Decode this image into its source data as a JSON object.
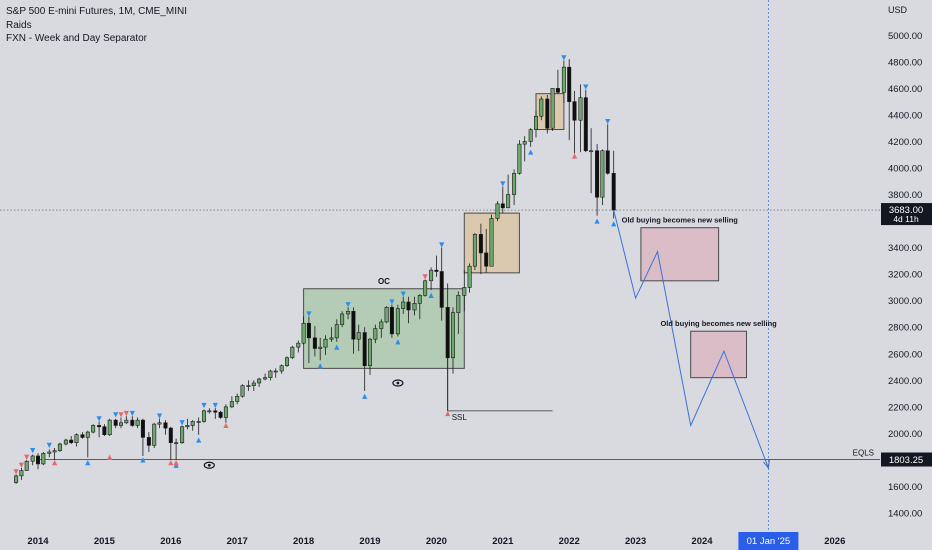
{
  "legend": {
    "title": "S&P 500 E-mini Futures, 1M, CME_MINI",
    "indicator1": "Raids",
    "indicator2": "FXN - Week and Day Separator"
  },
  "colors": {
    "background": "#d8dae0",
    "up_candle": "#6da86d",
    "down_candle": "#0f0f0f",
    "box_green": "#a8c7a8",
    "box_orange": "#dcc39f",
    "box_pink": "#dcb3c0",
    "projection": "#3a72d6",
    "marker_blue": "#2a8ef0",
    "marker_red": "#e26a6a",
    "price_label_bg": "#131722",
    "date_label_bg": "#2a5ee8"
  },
  "chart_data": {
    "type": "candlestick",
    "title": "S&P 500 E-mini Futures, 1M, CME_MINI",
    "currency": "USD",
    "ylim": [
      1300,
      5200
    ],
    "y_ticks": [
      1400,
      1600,
      1800,
      2000,
      2200,
      2400,
      2600,
      2800,
      3000,
      3200,
      3400,
      3600,
      3800,
      4000,
      4200,
      4400,
      4600,
      4800,
      5000
    ],
    "x_labels": [
      "2014",
      "2015",
      "2016",
      "2017",
      "2018",
      "2019",
      "2020",
      "2021",
      "2022",
      "2023",
      "2024",
      "2025",
      "2026"
    ],
    "x_highlight_label": "01 Jan '25",
    "last_price": "3683.00",
    "countdown": "4d 11h",
    "eqls_label": "EQLS",
    "eqls_price": "1803.25",
    "eqls_level": 1803.25,
    "ssl_label": "SSL",
    "ssl_level": 2170,
    "oc_label": "OC",
    "zones": [
      {
        "label": "",
        "kind": "green",
        "t0": 2018.0,
        "t1": 2020.42,
        "p0": 2490,
        "p1": 3090
      },
      {
        "label": "",
        "kind": "orange",
        "t0": 2020.42,
        "t1": 2021.25,
        "p0": 3210,
        "p1": 3660
      },
      {
        "label": "",
        "kind": "orange",
        "t0": 2021.5,
        "t1": 2021.92,
        "p0": 4290,
        "p1": 4560
      },
      {
        "label": "Old buying becomes new selling",
        "kind": "pink",
        "t0": 2023.08,
        "t1": 2024.25,
        "p0": 3150,
        "p1": 3550
      },
      {
        "label": "Old buying becomes new selling",
        "kind": "pink",
        "t0": 2023.83,
        "t1": 2024.67,
        "p0": 2420,
        "p1": 2770
      }
    ],
    "projection": [
      {
        "t": 2022.67,
        "p": 3683
      },
      {
        "t": 2023.0,
        "p": 3020
      },
      {
        "t": 2023.33,
        "p": 3370
      },
      {
        "t": 2023.83,
        "p": 2060
      },
      {
        "t": 2024.33,
        "p": 2620
      },
      {
        "t": 2025.0,
        "p": 1740
      }
    ],
    "candles": [
      {
        "t": 2013.67,
        "o": 1630,
        "h": 1690,
        "l": 1620,
        "c": 1680
      },
      {
        "t": 2013.75,
        "o": 1680,
        "h": 1740,
        "l": 1650,
        "c": 1720
      },
      {
        "t": 2013.83,
        "o": 1720,
        "h": 1800,
        "l": 1720,
        "c": 1790
      },
      {
        "t": 2013.92,
        "o": 1790,
        "h": 1840,
        "l": 1760,
        "c": 1830
      },
      {
        "t": 2014.0,
        "o": 1830,
        "h": 1850,
        "l": 1730,
        "c": 1770
      },
      {
        "t": 2014.08,
        "o": 1770,
        "h": 1860,
        "l": 1760,
        "c": 1850
      },
      {
        "t": 2014.17,
        "o": 1850,
        "h": 1880,
        "l": 1820,
        "c": 1860
      },
      {
        "t": 2014.25,
        "o": 1860,
        "h": 1890,
        "l": 1800,
        "c": 1870
      },
      {
        "t": 2014.33,
        "o": 1870,
        "h": 1930,
        "l": 1860,
        "c": 1920
      },
      {
        "t": 2014.42,
        "o": 1920,
        "h": 1960,
        "l": 1910,
        "c": 1950
      },
      {
        "t": 2014.5,
        "o": 1950,
        "h": 1980,
        "l": 1920,
        "c": 1930
      },
      {
        "t": 2014.58,
        "o": 1930,
        "h": 2000,
        "l": 1900,
        "c": 1990
      },
      {
        "t": 2014.67,
        "o": 1990,
        "h": 2010,
        "l": 1960,
        "c": 1970
      },
      {
        "t": 2014.75,
        "o": 1970,
        "h": 2020,
        "l": 1820,
        "c": 2010
      },
      {
        "t": 2014.83,
        "o": 2010,
        "h": 2070,
        "l": 2000,
        "c": 2060
      },
      {
        "t": 2014.92,
        "o": 2060,
        "h": 2090,
        "l": 1970,
        "c": 2050
      },
      {
        "t": 2015.0,
        "o": 2050,
        "h": 2070,
        "l": 1980,
        "c": 1990
      },
      {
        "t": 2015.08,
        "o": 1990,
        "h": 2110,
        "l": 1980,
        "c": 2100
      },
      {
        "t": 2015.17,
        "o": 2100,
        "h": 2110,
        "l": 2040,
        "c": 2060
      },
      {
        "t": 2015.25,
        "o": 2060,
        "h": 2120,
        "l": 2040,
        "c": 2080
      },
      {
        "t": 2015.33,
        "o": 2080,
        "h": 2130,
        "l": 2070,
        "c": 2100
      },
      {
        "t": 2015.42,
        "o": 2100,
        "h": 2130,
        "l": 2050,
        "c": 2060
      },
      {
        "t": 2015.5,
        "o": 2060,
        "h": 2120,
        "l": 2040,
        "c": 2100
      },
      {
        "t": 2015.58,
        "o": 2100,
        "h": 2110,
        "l": 1830,
        "c": 1970
      },
      {
        "t": 2015.67,
        "o": 1970,
        "h": 2010,
        "l": 1860,
        "c": 1910
      },
      {
        "t": 2015.75,
        "o": 1910,
        "h": 2080,
        "l": 1890,
        "c": 2070
      },
      {
        "t": 2015.83,
        "o": 2070,
        "h": 2110,
        "l": 2040,
        "c": 2080
      },
      {
        "t": 2015.92,
        "o": 2080,
        "h": 2100,
        "l": 1990,
        "c": 2040
      },
      {
        "t": 2016.0,
        "o": 2040,
        "h": 2050,
        "l": 1800,
        "c": 1930
      },
      {
        "t": 2016.08,
        "o": 1930,
        "h": 1960,
        "l": 1800,
        "c": 1930
      },
      {
        "t": 2016.17,
        "o": 1930,
        "h": 2060,
        "l": 1920,
        "c": 2050
      },
      {
        "t": 2016.25,
        "o": 2050,
        "h": 2110,
        "l": 2030,
        "c": 2060
      },
      {
        "t": 2016.33,
        "o": 2060,
        "h": 2100,
        "l": 2020,
        "c": 2090
      },
      {
        "t": 2016.42,
        "o": 2090,
        "h": 2120,
        "l": 1990,
        "c": 2090
      },
      {
        "t": 2016.5,
        "o": 2090,
        "h": 2180,
        "l": 2080,
        "c": 2170
      },
      {
        "t": 2016.58,
        "o": 2170,
        "h": 2190,
        "l": 2150,
        "c": 2170
      },
      {
        "t": 2016.67,
        "o": 2170,
        "h": 2190,
        "l": 2110,
        "c": 2160
      },
      {
        "t": 2016.75,
        "o": 2160,
        "h": 2170,
        "l": 2110,
        "c": 2120
      },
      {
        "t": 2016.83,
        "o": 2120,
        "h": 2220,
        "l": 2080,
        "c": 2200
      },
      {
        "t": 2016.92,
        "o": 2200,
        "h": 2280,
        "l": 2190,
        "c": 2240
      },
      {
        "t": 2017.0,
        "o": 2240,
        "h": 2300,
        "l": 2220,
        "c": 2280
      },
      {
        "t": 2017.08,
        "o": 2280,
        "h": 2370,
        "l": 2270,
        "c": 2360
      },
      {
        "t": 2017.17,
        "o": 2360,
        "h": 2400,
        "l": 2320,
        "c": 2360
      },
      {
        "t": 2017.25,
        "o": 2360,
        "h": 2400,
        "l": 2320,
        "c": 2380
      },
      {
        "t": 2017.33,
        "o": 2380,
        "h": 2420,
        "l": 2350,
        "c": 2410
      },
      {
        "t": 2017.42,
        "o": 2410,
        "h": 2450,
        "l": 2400,
        "c": 2420
      },
      {
        "t": 2017.5,
        "o": 2420,
        "h": 2480,
        "l": 2400,
        "c": 2470
      },
      {
        "t": 2017.58,
        "o": 2470,
        "h": 2490,
        "l": 2420,
        "c": 2470
      },
      {
        "t": 2017.67,
        "o": 2470,
        "h": 2520,
        "l": 2450,
        "c": 2510
      },
      {
        "t": 2017.75,
        "o": 2510,
        "h": 2580,
        "l": 2500,
        "c": 2570
      },
      {
        "t": 2017.83,
        "o": 2570,
        "h": 2660,
        "l": 2560,
        "c": 2650
      },
      {
        "t": 2017.92,
        "o": 2650,
        "h": 2700,
        "l": 2610,
        "c": 2680
      },
      {
        "t": 2018.0,
        "o": 2680,
        "h": 2880,
        "l": 2670,
        "c": 2830
      },
      {
        "t": 2018.08,
        "o": 2830,
        "h": 2880,
        "l": 2530,
        "c": 2720
      },
      {
        "t": 2018.17,
        "o": 2720,
        "h": 2810,
        "l": 2580,
        "c": 2640
      },
      {
        "t": 2018.25,
        "o": 2640,
        "h": 2720,
        "l": 2550,
        "c": 2650
      },
      {
        "t": 2018.33,
        "o": 2650,
        "h": 2740,
        "l": 2590,
        "c": 2710
      },
      {
        "t": 2018.42,
        "o": 2710,
        "h": 2800,
        "l": 2690,
        "c": 2720
      },
      {
        "t": 2018.5,
        "o": 2720,
        "h": 2860,
        "l": 2690,
        "c": 2820
      },
      {
        "t": 2018.58,
        "o": 2820,
        "h": 2920,
        "l": 2800,
        "c": 2900
      },
      {
        "t": 2018.67,
        "o": 2900,
        "h": 2950,
        "l": 2860,
        "c": 2920
      },
      {
        "t": 2018.75,
        "o": 2920,
        "h": 2950,
        "l": 2600,
        "c": 2710
      },
      {
        "t": 2018.83,
        "o": 2710,
        "h": 2820,
        "l": 2620,
        "c": 2760
      },
      {
        "t": 2018.92,
        "o": 2760,
        "h": 2800,
        "l": 2320,
        "c": 2510
      },
      {
        "t": 2019.0,
        "o": 2510,
        "h": 2720,
        "l": 2440,
        "c": 2710
      },
      {
        "t": 2019.08,
        "o": 2710,
        "h": 2820,
        "l": 2680,
        "c": 2790
      },
      {
        "t": 2019.17,
        "o": 2790,
        "h": 2860,
        "l": 2720,
        "c": 2840
      },
      {
        "t": 2019.25,
        "o": 2840,
        "h": 2960,
        "l": 2830,
        "c": 2950
      },
      {
        "t": 2019.33,
        "o": 2950,
        "h": 2970,
        "l": 2720,
        "c": 2750
      },
      {
        "t": 2019.42,
        "o": 2750,
        "h": 2970,
        "l": 2730,
        "c": 2940
      },
      {
        "t": 2019.5,
        "o": 2940,
        "h": 3030,
        "l": 2900,
        "c": 2990
      },
      {
        "t": 2019.58,
        "o": 2990,
        "h": 3030,
        "l": 2830,
        "c": 2930
      },
      {
        "t": 2019.67,
        "o": 2930,
        "h": 3030,
        "l": 2890,
        "c": 2980
      },
      {
        "t": 2019.75,
        "o": 2980,
        "h": 3050,
        "l": 2860,
        "c": 3040
      },
      {
        "t": 2019.83,
        "o": 3040,
        "h": 3160,
        "l": 3030,
        "c": 3150
      },
      {
        "t": 2019.92,
        "o": 3150,
        "h": 3250,
        "l": 3080,
        "c": 3230
      },
      {
        "t": 2020.0,
        "o": 3230,
        "h": 3340,
        "l": 3180,
        "c": 3220
      },
      {
        "t": 2020.08,
        "o": 3220,
        "h": 3400,
        "l": 2850,
        "c": 2950
      },
      {
        "t": 2020.17,
        "o": 2950,
        "h": 3130,
        "l": 2170,
        "c": 2570
      },
      {
        "t": 2020.25,
        "o": 2570,
        "h": 2950,
        "l": 2450,
        "c": 2910
      },
      {
        "t": 2020.33,
        "o": 2910,
        "h": 3070,
        "l": 2750,
        "c": 3040
      },
      {
        "t": 2020.42,
        "o": 3040,
        "h": 3230,
        "l": 2920,
        "c": 3100
      },
      {
        "t": 2020.5,
        "o": 3100,
        "h": 3280,
        "l": 3060,
        "c": 3260
      },
      {
        "t": 2020.58,
        "o": 3260,
        "h": 3510,
        "l": 3230,
        "c": 3500
      },
      {
        "t": 2020.67,
        "o": 3500,
        "h": 3580,
        "l": 3200,
        "c": 3360
      },
      {
        "t": 2020.75,
        "o": 3360,
        "h": 3540,
        "l": 3210,
        "c": 3260
      },
      {
        "t": 2020.83,
        "o": 3260,
        "h": 3650,
        "l": 3270,
        "c": 3620
      },
      {
        "t": 2020.92,
        "o": 3620,
        "h": 3750,
        "l": 3600,
        "c": 3730
      },
      {
        "t": 2021.0,
        "o": 3730,
        "h": 3860,
        "l": 3660,
        "c": 3700
      },
      {
        "t": 2021.08,
        "o": 3700,
        "h": 3950,
        "l": 3700,
        "c": 3800
      },
      {
        "t": 2021.17,
        "o": 3800,
        "h": 3990,
        "l": 3720,
        "c": 3960
      },
      {
        "t": 2021.25,
        "o": 3960,
        "h": 4210,
        "l": 3950,
        "c": 4180
      },
      {
        "t": 2021.33,
        "o": 4180,
        "h": 4240,
        "l": 4050,
        "c": 4200
      },
      {
        "t": 2021.42,
        "o": 4200,
        "h": 4300,
        "l": 4160,
        "c": 4290
      },
      {
        "t": 2021.5,
        "o": 4290,
        "h": 4430,
        "l": 4230,
        "c": 4390
      },
      {
        "t": 2021.58,
        "o": 4390,
        "h": 4540,
        "l": 4360,
        "c": 4520
      },
      {
        "t": 2021.67,
        "o": 4520,
        "h": 4550,
        "l": 4260,
        "c": 4300
      },
      {
        "t": 2021.75,
        "o": 4300,
        "h": 4600,
        "l": 4280,
        "c": 4600
      },
      {
        "t": 2021.83,
        "o": 4600,
        "h": 4740,
        "l": 4560,
        "c": 4570
      },
      {
        "t": 2021.92,
        "o": 4570,
        "h": 4810,
        "l": 4490,
        "c": 4760
      },
      {
        "t": 2022.0,
        "o": 4760,
        "h": 4820,
        "l": 4210,
        "c": 4500
      },
      {
        "t": 2022.08,
        "o": 4500,
        "h": 4580,
        "l": 4110,
        "c": 4360
      },
      {
        "t": 2022.17,
        "o": 4360,
        "h": 4630,
        "l": 4120,
        "c": 4530
      },
      {
        "t": 2022.25,
        "o": 4530,
        "h": 4590,
        "l": 4120,
        "c": 4130
      },
      {
        "t": 2022.33,
        "o": 4130,
        "h": 4300,
        "l": 3810,
        "c": 4130
      },
      {
        "t": 2022.42,
        "o": 4130,
        "h": 4180,
        "l": 3640,
        "c": 3780
      },
      {
        "t": 2022.5,
        "o": 3780,
        "h": 4140,
        "l": 3720,
        "c": 4130
      },
      {
        "t": 2022.58,
        "o": 4130,
        "h": 4330,
        "l": 3950,
        "c": 3960
      },
      {
        "t": 2022.67,
        "o": 3960,
        "h": 4130,
        "l": 3620,
        "c": 3683
      }
    ],
    "markers_blue_up": [
      {
        "t": 2014.75,
        "p": 1780
      },
      {
        "t": 2015.58,
        "p": 1800
      },
      {
        "t": 2016.42,
        "p": 1950
      },
      {
        "t": 2016.08,
        "p": 1760
      },
      {
        "t": 2018.25,
        "p": 2510
      },
      {
        "t": 2018.5,
        "p": 2650
      },
      {
        "t": 2018.92,
        "p": 2280
      },
      {
        "t": 2019.42,
        "p": 2690
      },
      {
        "t": 2019.92,
        "p": 3040
      },
      {
        "t": 2021.42,
        "p": 4120
      },
      {
        "t": 2022.42,
        "p": 3600
      },
      {
        "t": 2022.67,
        "p": 3580
      }
    ],
    "markers_blue_down": [
      {
        "t": 2013.92,
        "p": 1870
      },
      {
        "t": 2014.17,
        "p": 1910
      },
      {
        "t": 2014.92,
        "p": 2110
      },
      {
        "t": 2015.17,
        "p": 2140
      },
      {
        "t": 2015.42,
        "p": 2150
      },
      {
        "t": 2015.83,
        "p": 2130
      },
      {
        "t": 2016.17,
        "p": 2080
      },
      {
        "t": 2016.5,
        "p": 2210
      },
      {
        "t": 2016.67,
        "p": 2210
      },
      {
        "t": 2018.08,
        "p": 2900
      },
      {
        "t": 2018.67,
        "p": 2970
      },
      {
        "t": 2019.33,
        "p": 2990
      },
      {
        "t": 2019.5,
        "p": 3050
      },
      {
        "t": 2020.08,
        "p": 3420
      },
      {
        "t": 2021.0,
        "p": 3880
      },
      {
        "t": 2021.92,
        "p": 4830
      },
      {
        "t": 2022.25,
        "p": 4610
      },
      {
        "t": 2022.58,
        "p": 4350
      }
    ],
    "markers_red_up": [
      {
        "t": 2014.25,
        "p": 1780
      },
      {
        "t": 2015.08,
        "p": 1820
      },
      {
        "t": 2016.0,
        "p": 1780
      },
      {
        "t": 2016.08,
        "p": 1780
      },
      {
        "t": 2016.83,
        "p": 2060
      },
      {
        "t": 2020.17,
        "p": 2150
      },
      {
        "t": 2022.08,
        "p": 4090
      }
    ],
    "markers_red_down": [
      {
        "t": 2013.67,
        "p": 1710
      },
      {
        "t": 2013.75,
        "p": 1760
      },
      {
        "t": 2013.83,
        "p": 1820
      },
      {
        "t": 2015.25,
        "p": 2140
      },
      {
        "t": 2015.33,
        "p": 2150
      },
      {
        "t": 2019.83,
        "p": 3180
      }
    ]
  }
}
